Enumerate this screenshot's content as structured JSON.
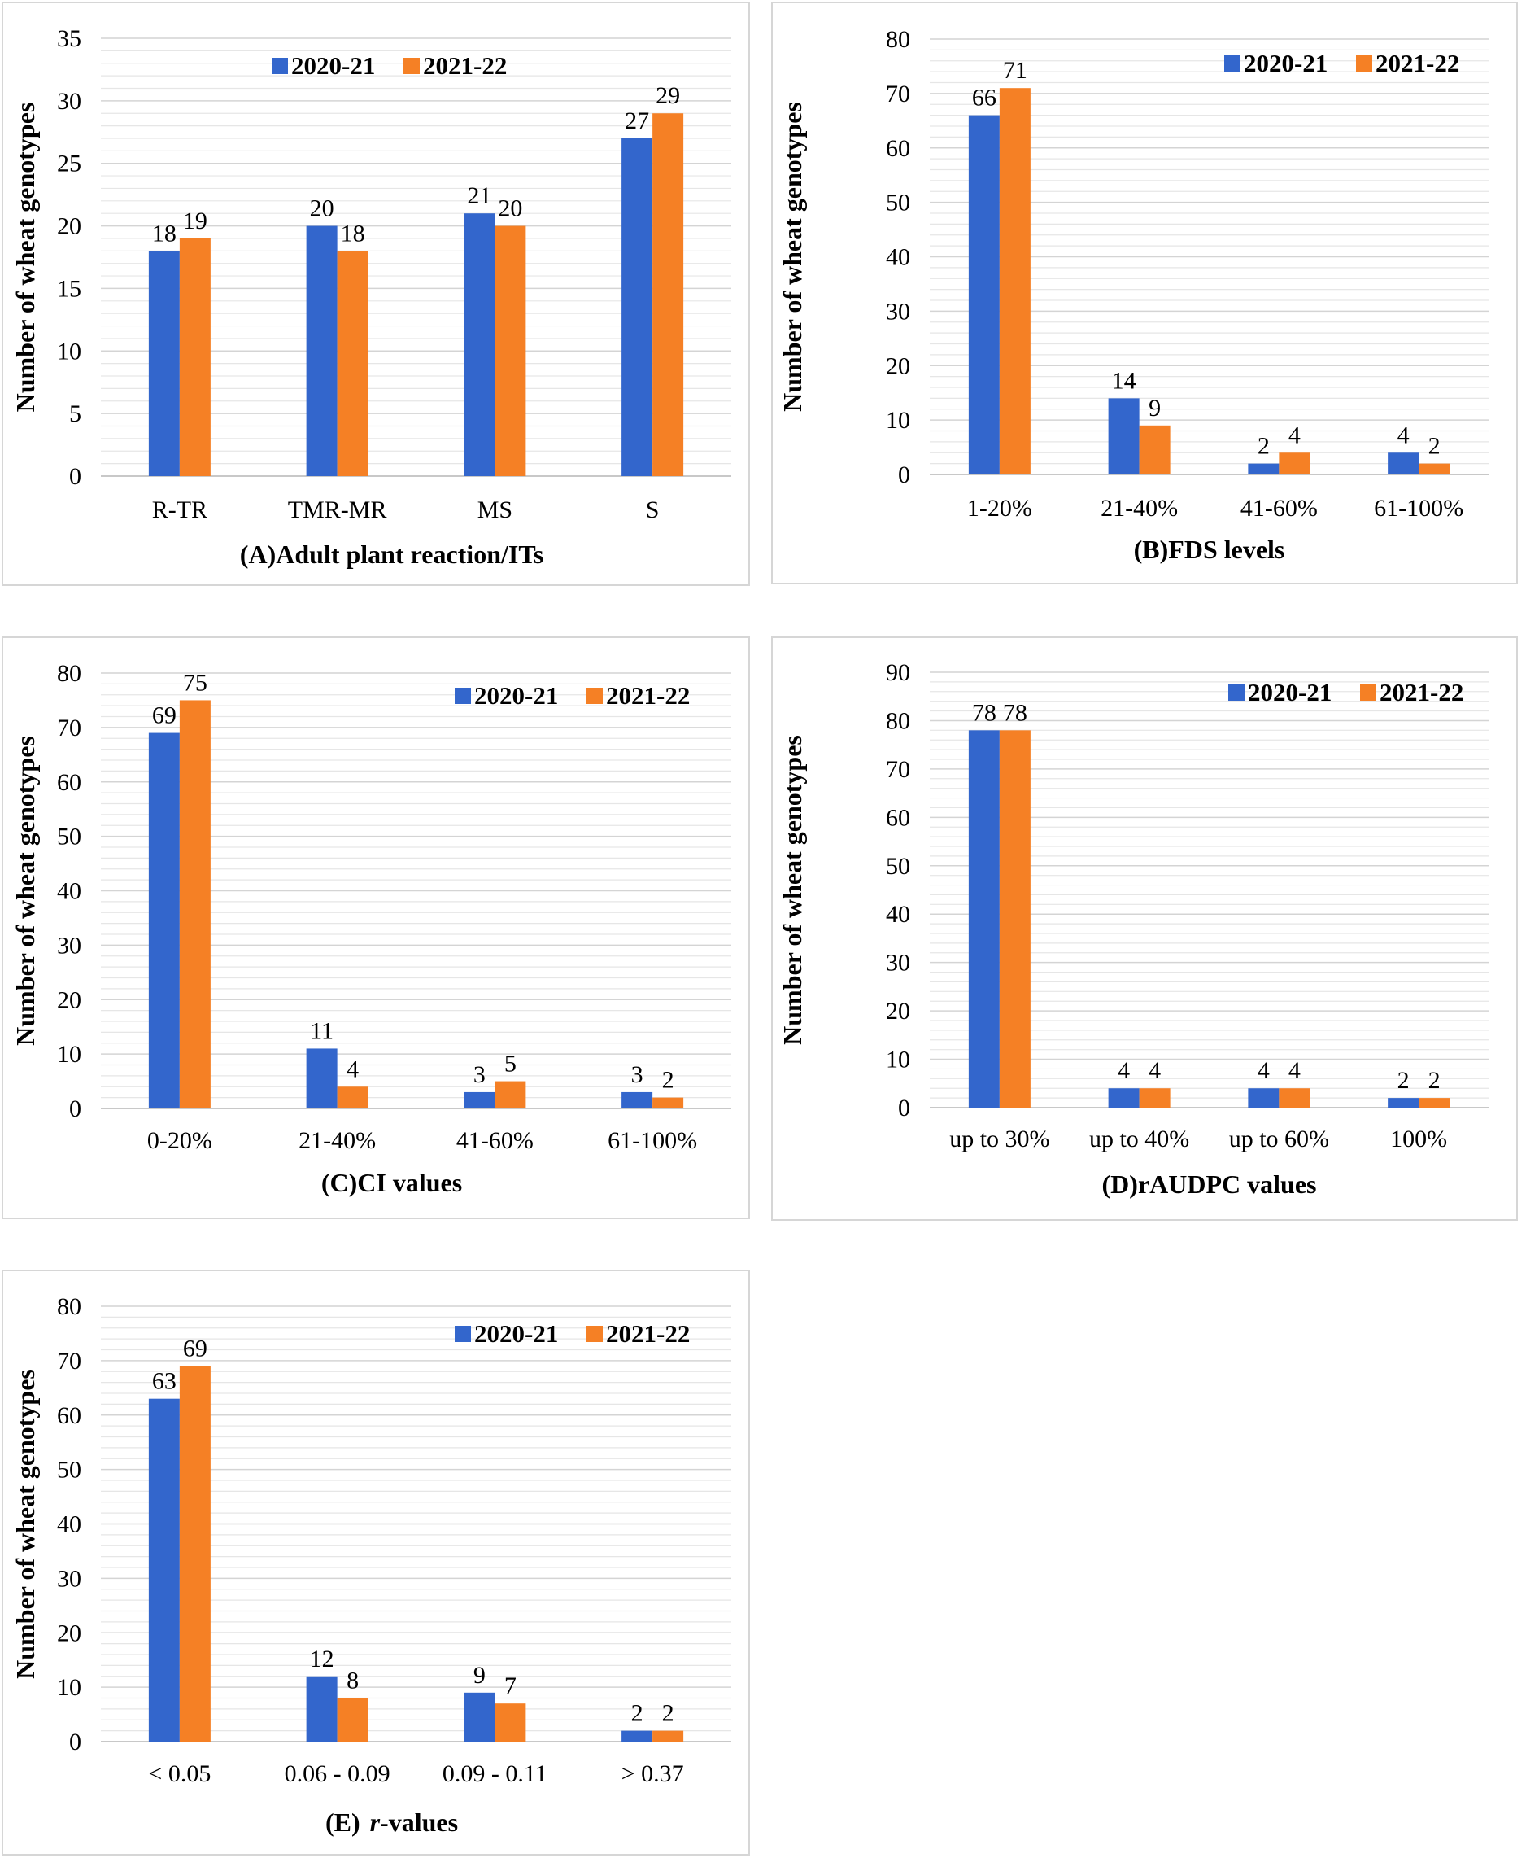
{
  "series_colors": [
    "#3366cc",
    "#f58025"
  ],
  "chart_data": [
    {
      "id": "A",
      "type": "bar",
      "title_prefix": "(A)",
      "title_main": "Adult plant reaction/ITs",
      "title_italic": "",
      "ylabel": "Number of wheat genotypes",
      "categories": [
        "R-TR",
        "TMR-MR",
        "MS",
        "S"
      ],
      "series": [
        {
          "name": "2020-21",
          "values": [
            18,
            20,
            21,
            27
          ]
        },
        {
          "name": "2021-22",
          "values": [
            19,
            18,
            20,
            29
          ]
        }
      ],
      "ylim": [
        0,
        35
      ],
      "ystep": 5,
      "minor": 1,
      "legend": "top-center"
    },
    {
      "id": "B",
      "type": "bar",
      "title_prefix": "(B)",
      "title_main": "FDS levels",
      "title_italic": "",
      "ylabel": "Number of wheat genotypes",
      "categories": [
        "1-20%",
        "21-40%",
        "41-60%",
        "61-100%"
      ],
      "series": [
        {
          "name": "2020-21",
          "values": [
            66,
            14,
            2,
            4
          ]
        },
        {
          "name": "2021-22",
          "values": [
            71,
            9,
            4,
            2
          ]
        }
      ],
      "ylim": [
        0,
        80
      ],
      "ystep": 10,
      "minor": 2,
      "legend": "top-right"
    },
    {
      "id": "C",
      "type": "bar",
      "title_prefix": "(C)",
      "title_main": "CI values",
      "title_italic": "",
      "ylabel": "Number of wheat genotypes",
      "categories": [
        "0-20%",
        "21-40%",
        "41-60%",
        "61-100%"
      ],
      "series": [
        {
          "name": "2020-21",
          "values": [
            69,
            11,
            3,
            3
          ]
        },
        {
          "name": "2021-22",
          "values": [
            75,
            4,
            5,
            2
          ]
        }
      ],
      "ylim": [
        0,
        80
      ],
      "ystep": 10,
      "minor": 2,
      "legend": "top-right"
    },
    {
      "id": "D",
      "type": "bar",
      "title_prefix": "(D)",
      "title_main": "rAUDPC values",
      "title_italic": "",
      "ylabel": "Number of wheat genotypes",
      "categories": [
        "up to 30%",
        "up to 40%",
        "up to 60%",
        "100%"
      ],
      "series": [
        {
          "name": "2020-21",
          "values": [
            78,
            4,
            4,
            2
          ]
        },
        {
          "name": "2021-22",
          "values": [
            78,
            4,
            4,
            2
          ]
        }
      ],
      "ylim": [
        0,
        90
      ],
      "ystep": 10,
      "minor": 2,
      "legend": "top-right"
    },
    {
      "id": "E",
      "type": "bar",
      "title_prefix": "(E)",
      "title_main": "-values",
      "title_italic": "r",
      "ylabel": "Number of wheat genotypes",
      "categories": [
        "< 0.05",
        "0.06 - 0.09",
        "0.09 - 0.11",
        "> 0.37"
      ],
      "series": [
        {
          "name": "2020-21",
          "values": [
            63,
            12,
            9,
            2
          ]
        },
        {
          "name": "2021-22",
          "values": [
            69,
            8,
            7,
            2
          ]
        }
      ],
      "ylim": [
        0,
        80
      ],
      "ystep": 10,
      "minor": 2,
      "legend": "top-right"
    }
  ]
}
